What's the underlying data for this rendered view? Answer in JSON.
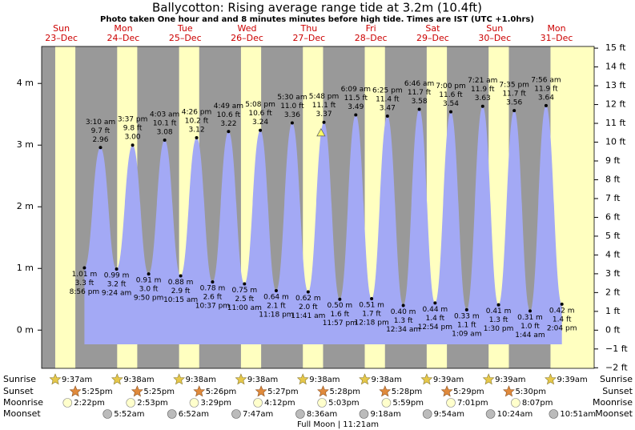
{
  "chart_data": {
    "type": "area",
    "title": "Ballycotton: Rising average range tide at 3.2m (10.4ft)",
    "subtitle": "Photo taken One hour and and 8 minutes minutes before high tide. Times are IST (UTC +1.0hrs)",
    "days": [
      {
        "name": "Sun",
        "date": "23–Dec"
      },
      {
        "name": "Mon",
        "date": "24–Dec"
      },
      {
        "name": "Tue",
        "date": "25–Dec"
      },
      {
        "name": "Wed",
        "date": "26–Dec"
      },
      {
        "name": "Thu",
        "date": "27–Dec"
      },
      {
        "name": "Fri",
        "date": "28–Dec"
      },
      {
        "name": "Sat",
        "date": "29–Dec"
      },
      {
        "name": "Sun",
        "date": "30–Dec"
      },
      {
        "name": "Mon",
        "date": "31–Dec"
      }
    ],
    "color": "#a3a9f5",
    "x": [
      "23-Dec 20:56",
      "24-Dec 03:10",
      "24-Dec 09:24",
      "24-Dec 15:37",
      "24-Dec 21:50",
      "25-Dec 04:03",
      "25-Dec 10:15",
      "25-Dec 16:26",
      "25-Dec 22:37",
      "26-Dec 04:49",
      "26-Dec 11:00",
      "26-Dec 17:08",
      "26-Dec 23:18",
      "27-Dec 05:30",
      "27-Dec 11:41",
      "27-Dec 17:48",
      "27-Dec 23:57",
      "28-Dec 06:09",
      "28-Dec 12:18",
      "28-Dec 18:25",
      "29-Dec 00:34",
      "29-Dec 06:46",
      "29-Dec 12:54",
      "29-Dec 19:00",
      "30-Dec 01:09",
      "30-Dec 07:21",
      "30-Dec 13:30",
      "30-Dec 19:35",
      "31-Dec 01:44",
      "31-Dec 07:56",
      "31-Dec 14:04"
    ],
    "values": [
      1.01,
      2.96,
      0.99,
      3.0,
      0.91,
      3.08,
      0.88,
      3.12,
      0.78,
      3.22,
      0.75,
      3.24,
      0.64,
      3.36,
      0.62,
      3.37,
      0.5,
      3.49,
      0.51,
      3.47,
      0.4,
      3.58,
      0.44,
      3.54,
      0.33,
      3.63,
      0.41,
      3.56,
      0.31,
      3.64,
      0.42
    ],
    "value_labels": [
      "1.01 m",
      "2.96",
      "0.99 m",
      "3.00",
      "0.91 m",
      "3.08",
      "0.88 m",
      "3.12",
      "0.78 m",
      "3.22",
      "0.75 m",
      "3.24",
      "0.64 m",
      "3.36",
      "0.62 m",
      "3.37",
      "0.50 m",
      "3.49",
      "0.51 m",
      "3.47",
      "0.40 m",
      "3.58",
      "0.44 m",
      "3.54",
      "0.33 m",
      "3.63",
      "0.41 m",
      "3.56",
      "0.31 m",
      "3.64",
      "0.42 m"
    ],
    "ft_labels": [
      "3.3 ft",
      "9.7 ft",
      "3.2 ft",
      "9.8 ft",
      "3.0 ft",
      "10.1 ft",
      "2.9 ft",
      "10.2 ft",
      "2.6 ft",
      "10.6 ft",
      "2.5 ft",
      "10.6 ft",
      "2.1 ft",
      "11.0 ft",
      "2.0 ft",
      "11.1 ft",
      "1.6 ft",
      "11.5 ft",
      "1.7 ft",
      "11.4 ft",
      "1.3 ft",
      "11.7 ft",
      "1.4 ft",
      "11.6 ft",
      "1.1 ft",
      "11.9 ft",
      "1.3 ft",
      "11.7 ft",
      "1.0 ft",
      "11.9 ft",
      "1.4 ft"
    ],
    "time_labels": [
      "8:56 pm",
      "3:10 am",
      "9:24 am",
      "3:37 pm",
      "9:50 pm",
      "4:03 am",
      "10:15 am",
      "4:26 pm",
      "10:37 pm",
      "4:49 am",
      "11:00 am",
      "5:08 pm",
      "11:18 pm",
      "5:30 am",
      "11:41 am",
      "5:48 pm",
      "11:57 pm",
      "6:09 am",
      "12:18 pm",
      "6:25 pm",
      "12:34 am",
      "6:46 am",
      "12:54 pm",
      "7:00 pm",
      "1:09 am",
      "7:21 am",
      "1:30 pm",
      "7:35 pm",
      "1:44 am",
      "7:56 am",
      "2:04 pm"
    ],
    "photo_marker": {
      "x": "27-Dec 16:40",
      "value": 3.2
    },
    "ylim": [
      -0.62,
      4.6
    ],
    "yticks": [
      {
        "value": 0,
        "label": "0 m"
      },
      {
        "value": 1,
        "label": "1 m"
      },
      {
        "value": 2,
        "label": "2 m"
      },
      {
        "value": 3,
        "label": "3 m"
      },
      {
        "value": 4,
        "label": "4 m"
      }
    ],
    "y2lim": [
      -2.03,
      15.09
    ],
    "y2ticks": [
      {
        "value": -2,
        "label": "−2 ft"
      },
      {
        "value": -1,
        "label": "−1 ft"
      },
      {
        "value": 0,
        "label": "0 ft"
      },
      {
        "value": 1,
        "label": "1 ft"
      },
      {
        "value": 2,
        "label": "2 ft"
      },
      {
        "value": 3,
        "label": "3 ft"
      },
      {
        "value": 4,
        "label": "4 ft"
      },
      {
        "value": 5,
        "label": "5 ft"
      },
      {
        "value": 6,
        "label": "6 ft"
      },
      {
        "value": 7,
        "label": "7 ft"
      },
      {
        "value": 8,
        "label": "8 ft"
      },
      {
        "value": 9,
        "label": "9 ft"
      },
      {
        "value": 10,
        "label": "10 ft"
      },
      {
        "value": 11,
        "label": "11 ft"
      },
      {
        "value": 12,
        "label": "12 ft"
      },
      {
        "value": 13,
        "label": "13 ft"
      },
      {
        "value": 14,
        "label": "14 ft"
      },
      {
        "value": 15,
        "label": "15 ft"
      }
    ],
    "events": [
      {
        "name": "Sunrise",
        "x": [
          "23-Dec 09:37",
          "24-Dec 09:38",
          "25-Dec 09:38",
          "26-Dec 09:38",
          "27-Dec 09:38",
          "28-Dec 09:38",
          "29-Dec 09:39",
          "30-Dec 09:39",
          "31-Dec 09:39"
        ],
        "labels": [
          "9:37am",
          "9:38am",
          "9:38am",
          "9:38am",
          "9:38am",
          "9:38am",
          "9:39am",
          "9:39am",
          "9:39am"
        ]
      },
      {
        "name": "Sunset",
        "x": [
          "23-Dec 17:25",
          "24-Dec 17:25",
          "25-Dec 17:26",
          "26-Dec 17:27",
          "27-Dec 17:28",
          "28-Dec 17:28",
          "29-Dec 17:29",
          "30-Dec 17:30"
        ],
        "labels": [
          "5:25pm",
          "5:25pm",
          "5:26pm",
          "5:27pm",
          "5:28pm",
          "5:28pm",
          "5:29pm",
          "5:30pm"
        ]
      },
      {
        "name": "Moonrise",
        "x": [
          "23-Dec 14:22",
          "24-Dec 14:53",
          "25-Dec 15:29",
          "26-Dec 16:12",
          "27-Dec 17:03",
          "28-Dec 17:59",
          "29-Dec 19:01",
          "30-Dec 20:07"
        ],
        "labels": [
          "2:22pm",
          "2:53pm",
          "3:29pm",
          "4:12pm",
          "5:03pm",
          "5:59pm",
          "7:01pm",
          "8:07pm"
        ]
      },
      {
        "name": "Moonset",
        "x": [
          "24-Dec 05:52",
          "25-Dec 06:52",
          "26-Dec 07:47",
          "27-Dec 08:36",
          "28-Dec 09:18",
          "29-Dec 09:54",
          "30-Dec 10:24",
          "31-Dec 10:51"
        ],
        "labels": [
          "5:52am",
          "6:52am",
          "7:47am",
          "8:36am",
          "9:18am",
          "9:54am",
          "10:24am",
          "10:51am"
        ]
      }
    ],
    "moon_phase": "Full Moon | 11:21am"
  }
}
